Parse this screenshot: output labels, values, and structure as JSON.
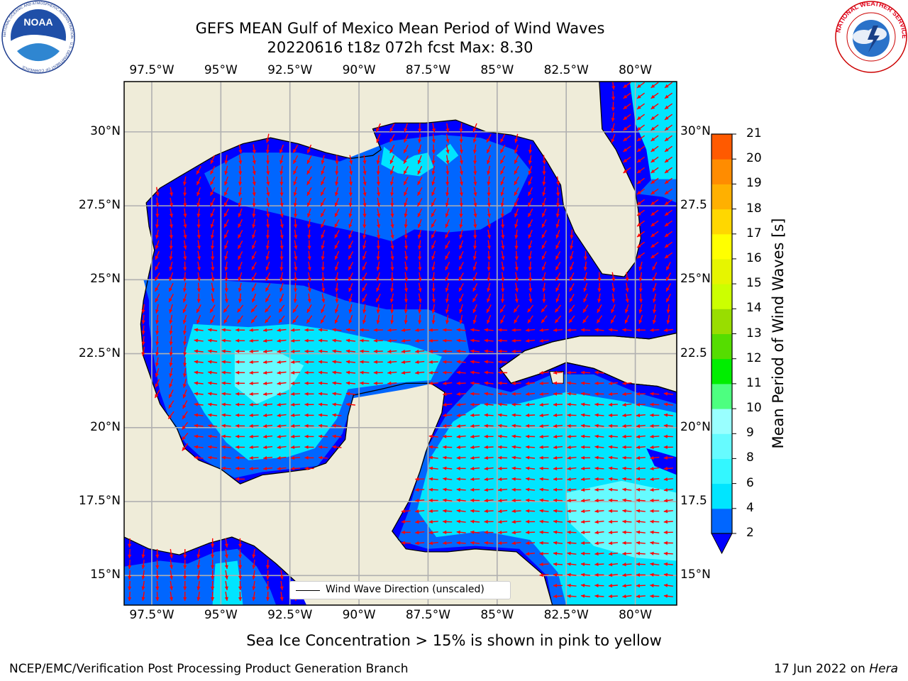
{
  "title": {
    "line1": "GEFS MEAN Gulf of Mexico Mean Period of Wind Waves",
    "line2": "20220616 t18z 072h fcst   Max: 8.30"
  },
  "map": {
    "lon_range": [
      -98.5,
      -78.5
    ],
    "lat_range": [
      14,
      31.7
    ],
    "lon_ticks": [
      "97.5°W",
      "95°W",
      "92.5°W",
      "90°W",
      "87.5°W",
      "85°W",
      "82.5°W",
      "80°W"
    ],
    "lat_ticks": [
      "15°N",
      "17.5°N",
      "20°N",
      "22.5°N",
      "25°N",
      "27.5°N",
      "30°N"
    ],
    "lat_ticks_right": [
      "15°N",
      "17.5",
      "20°N",
      "22.5",
      "25°N",
      "27.5",
      "30°N"
    ],
    "land_color": "#efecd9",
    "grid_color": "#b0b0b0",
    "arrow_color": "#ff0000"
  },
  "legend": {
    "label": "Wind Wave Direction (unscaled)"
  },
  "colorbar": {
    "label": "Mean Period of Wind Waves [s]",
    "ticks": [
      "2",
      "4",
      "6",
      "8",
      "9",
      "10",
      "11",
      "12",
      "13",
      "14",
      "15",
      "16",
      "17",
      "18",
      "19",
      "20",
      "21"
    ],
    "colors": [
      "#0066ff",
      "#00e5ff",
      "#33f7ff",
      "#66fbff",
      "#99ffff",
      "#4dff80",
      "#00ee00",
      "#55dd00",
      "#99dd00",
      "#ccff00",
      "#e6f500",
      "#ffff00",
      "#ffd700",
      "#ffb000",
      "#ff8c00",
      "#ff5a00",
      "#ff3000",
      "#ff0000"
    ],
    "under_color": "#0000ff"
  },
  "logos": {
    "left": {
      "text": "NOAA",
      "ring": "NATIONAL OCEANIC AND ATMOSPHERIC ADMINISTRATION · U.S. DEPARTMENT OF COMMERCE"
    },
    "right": {
      "ring": "NATIONAL WEATHER SERVICE"
    }
  },
  "footer": {
    "note": "Sea Ice Concentration > 15% is shown in pink to yellow",
    "left": "NCEP/EMC/Verification Post Processing Product Generation Branch",
    "right_date": "17 Jun 2022 on ",
    "right_host": "Hera"
  }
}
